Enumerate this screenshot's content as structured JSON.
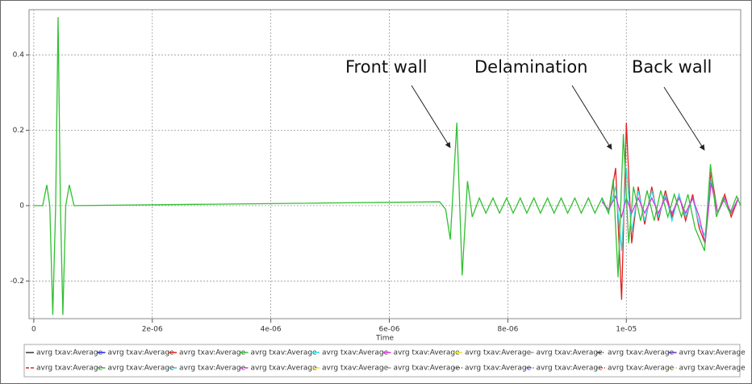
{
  "chart_data": {
    "type": "line",
    "xlabel": "Time",
    "xlim": [
      -8e-08,
      1.193e-05
    ],
    "ylim": [
      -0.3,
      0.52
    ],
    "xticks": [
      0,
      {
        "value": 2e-06,
        "label": "2e-06"
      },
      {
        "value": 4e-06,
        "label": "4e-06"
      },
      {
        "value": 6e-06,
        "label": "6e-06"
      },
      {
        "value": 8e-06,
        "label": "8e-06"
      },
      {
        "value": 1e-05,
        "label": "1e-05"
      }
    ],
    "yticks": [
      -0.2,
      0,
      0.2,
      0.4
    ],
    "grid": true,
    "annotations": [
      {
        "text": "Front wall"
      },
      {
        "text": "Delamination"
      },
      {
        "text": "Back wall"
      }
    ],
    "series": [
      {
        "name": "avrg txav:Average",
        "color": "#333333",
        "dash": "solid"
      },
      {
        "name": "avrg txav:Average",
        "color": "#2020e0",
        "dash": "solid"
      },
      {
        "name": "avrg txav:Average",
        "color": "#e02020",
        "dash": "solid",
        "x": [
          9.59e-06,
          9.7e-06,
          9.82e-06,
          9.92e-06,
          1e-05,
          1.009e-05,
          1.02e-05,
          1.031e-05,
          1.043e-05,
          1.054e-05,
          1.066e-05,
          1.077e-05,
          1.089e-05,
          1.1e-05,
          1.112e-05,
          1.123e-05,
          1.133e-05,
          1.143e-05,
          1.154e-05,
          1.166e-05,
          1.177e-05,
          1.189e-05
        ],
        "values": [
          0.02,
          -0.02,
          0.1,
          -0.25,
          0.22,
          -0.1,
          0.05,
          -0.05,
          0.05,
          -0.04,
          0.04,
          -0.03,
          0.03,
          -0.04,
          0.03,
          -0.06,
          -0.1,
          0.09,
          -0.02,
          0.03,
          -0.03,
          0.02
        ]
      },
      {
        "name": "avrg txav:Average",
        "color": "#30c030",
        "dash": "solid",
        "x": [
          0,
          1.5e-07,
          2.2e-07,
          2.7e-07,
          3.2e-07,
          3.7e-07,
          4.1e-07,
          4.5e-07,
          4.9e-07,
          5.4e-07,
          6e-07,
          6.8e-07,
          6.85e-06,
          6.95e-06,
          7.03e-06,
          7.14e-06,
          7.23e-06,
          7.32e-06,
          7.4e-06,
          7.52e-06,
          7.63e-06,
          7.75e-06,
          7.86e-06,
          7.98e-06,
          8.09e-06,
          8.21e-06,
          8.32e-06,
          8.44e-06,
          8.55e-06,
          8.67e-06,
          8.78e-06,
          8.9e-06,
          9.01e-06,
          9.13e-06,
          9.24e-06,
          9.36e-06,
          9.47e-06,
          9.59e-06,
          9.7e-06,
          9.78e-06,
          9.86e-06,
          9.95e-06,
          1.004e-05,
          1.012e-05,
          1.024e-05,
          1.035e-05,
          1.047e-05,
          1.058e-05,
          1.07e-05,
          1.081e-05,
          1.093e-05,
          1.104e-05,
          1.116e-05,
          1.132e-05,
          1.142e-05,
          1.152e-05,
          1.163e-05,
          1.175e-05,
          1.186e-05,
          1.193e-05
        ],
        "values": [
          0,
          0,
          0.055,
          0,
          -0.29,
          0,
          0.5,
          0,
          -0.29,
          0,
          0.055,
          0,
          0.01,
          -0.01,
          -0.09,
          0.22,
          -0.185,
          0.065,
          -0.03,
          0.02,
          -0.02,
          0.02,
          -0.02,
          0.02,
          -0.02,
          0.02,
          -0.02,
          0.02,
          -0.02,
          0.02,
          -0.02,
          0.02,
          -0.02,
          0.02,
          -0.02,
          0.02,
          -0.02,
          0.02,
          -0.02,
          0.07,
          -0.19,
          0.19,
          -0.1,
          0.05,
          -0.04,
          0.04,
          -0.04,
          0.04,
          -0.03,
          0.03,
          -0.03,
          0.03,
          -0.06,
          -0.12,
          0.11,
          -0.03,
          0.02,
          -0.02,
          0.025,
          0
        ]
      },
      {
        "name": "avrg txav:Average",
        "color": "#30e0e0",
        "dash": "solid",
        "x": [
          9.59e-06,
          9.7e-06,
          9.82e-06,
          9.92e-06,
          1e-05,
          1.009e-05,
          1.02e-05,
          1.031e-05,
          1.043e-05,
          1.054e-05,
          1.066e-05,
          1.077e-05,
          1.089e-05,
          1.1e-05,
          1.112e-05,
          1.123e-05,
          1.133e-05,
          1.143e-05,
          1.154e-05,
          1.166e-05,
          1.177e-05,
          1.189e-05
        ],
        "values": [
          0.015,
          -0.02,
          0.05,
          -0.12,
          0.1,
          -0.07,
          0.04,
          -0.04,
          0.04,
          -0.03,
          0.03,
          -0.04,
          0.03,
          -0.03,
          0.02,
          -0.05,
          -0.08,
          0.07,
          -0.02,
          0.02,
          -0.02,
          0.02
        ]
      },
      {
        "name": "avrg txav:Average",
        "color": "#e030e0",
        "dash": "solid",
        "x": [
          9.59e-06,
          9.7e-06,
          9.82e-06,
          9.92e-06,
          1e-05,
          1.009e-05,
          1.02e-05,
          1.031e-05,
          1.043e-05,
          1.054e-05,
          1.066e-05,
          1.077e-05,
          1.089e-05,
          1.1e-05,
          1.112e-05,
          1.123e-05,
          1.133e-05,
          1.143e-05,
          1.154e-05,
          1.166e-05,
          1.177e-05,
          1.189e-05
        ],
        "values": [
          0.01,
          -0.01,
          0.025,
          -0.03,
          0.02,
          -0.02,
          0.02,
          -0.02,
          0.02,
          -0.02,
          0.02,
          -0.02,
          0.02,
          -0.02,
          0.02,
          -0.03,
          -0.1,
          0.06,
          -0.02,
          0.02,
          -0.02,
          0.02
        ]
      },
      {
        "name": "avrg txav:Average",
        "color": "#e0e020",
        "dash": "solid"
      },
      {
        "name": "avrg txav:Average",
        "color": "#a0a0a0",
        "dash": "solid"
      },
      {
        "name": "avrg txav:Average",
        "color": "#333333",
        "dash": "dashdot"
      },
      {
        "name": "avrg txav:Average",
        "color": "#6030c0",
        "dash": "solid"
      },
      {
        "name": "avrg txav:Average",
        "color": "#e02020",
        "dash": "dashed"
      },
      {
        "name": "avrg txav:Average",
        "color": "#30c030",
        "dash": "dashed"
      },
      {
        "name": "avrg txav:Average",
        "color": "#30c0e0",
        "dash": "dashed"
      },
      {
        "name": "avrg txav:Average",
        "color": "#e030e0",
        "dash": "dashed"
      },
      {
        "name": "avrg txav:Average",
        "color": "#e0e020",
        "dash": "dashed"
      },
      {
        "name": "avrg txav:Average",
        "color": "#a0a0a0",
        "dash": "dashed"
      },
      {
        "name": "avrg txav:Average",
        "color": "#333333",
        "dash": "dotted"
      },
      {
        "name": "avrg txav:Average",
        "color": "#2020e0",
        "dash": "dotted"
      },
      {
        "name": "avrg txav:Average",
        "color": "#e02020",
        "dash": "dotted"
      },
      {
        "name": "avrg txav:Average",
        "color": "#a0c020",
        "dash": "dotted"
      }
    ]
  }
}
